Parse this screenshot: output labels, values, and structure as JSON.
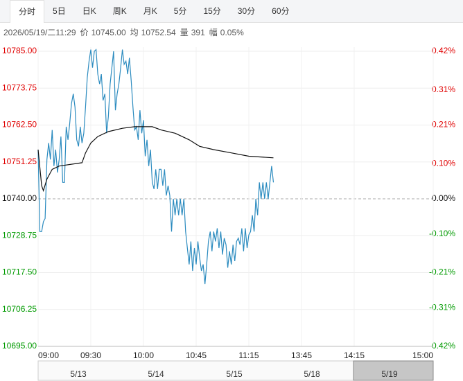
{
  "tabs": [
    "分时",
    "5日",
    "日K",
    "周K",
    "月K",
    "5分",
    "15分",
    "30分",
    "60分"
  ],
  "active_tab": 0,
  "info": {
    "time": "2026/05/19/二11:29",
    "items": [
      {
        "label": "价",
        "value": "10745.00"
      },
      {
        "label": "均",
        "value": "10752.54"
      },
      {
        "label": "量",
        "value": "391"
      },
      {
        "label": "幅",
        "value": "0.05%"
      }
    ]
  },
  "chart_data": {
    "type": "line",
    "xlim": [
      0,
      225
    ],
    "xticks": [
      {
        "value": 0,
        "label": "09:00"
      },
      {
        "value": 30,
        "label": "09:30"
      },
      {
        "value": 60,
        "label": "10:00"
      },
      {
        "value": 90,
        "label": "10:45"
      },
      {
        "value": 120,
        "label": "11:15"
      },
      {
        "value": 150,
        "label": "13:45"
      },
      {
        "value": 180,
        "label": "14:15"
      },
      {
        "value": 225,
        "label": "15:00"
      }
    ],
    "ylim": [
      10695,
      10785
    ],
    "yticks": [
      {
        "value": 10785,
        "label": "10785.00"
      },
      {
        "value": 10773.75,
        "label": "10773.75"
      },
      {
        "value": 10762.5,
        "label": "10762.50"
      },
      {
        "value": 10751.25,
        "label": "10751.25"
      },
      {
        "value": 10740,
        "label": "10740.00"
      },
      {
        "value": 10728.75,
        "label": "10728.75"
      },
      {
        "value": 10717.5,
        "label": "10717.50"
      },
      {
        "value": 10706.25,
        "label": "10706.25"
      },
      {
        "value": 10695,
        "label": "10695.00"
      }
    ],
    "y2lim": [
      -0.42,
      0.42
    ],
    "y2ticks": [
      {
        "value": 0.42,
        "label": "0.42%"
      },
      {
        "value": 0.31,
        "label": "0.31%"
      },
      {
        "value": 0.21,
        "label": "0.21%"
      },
      {
        "value": 0.1,
        "label": "0.10%"
      },
      {
        "value": 0,
        "label": "0.00%"
      },
      {
        "value": -0.1,
        "label": "-0.10%"
      },
      {
        "value": -0.21,
        "label": "-0.21%"
      },
      {
        "value": -0.31,
        "label": "-0.31%"
      },
      {
        "value": -0.42,
        "label": "-0.42%"
      }
    ],
    "reference_line": 10740,
    "up_color": "#e00000",
    "down_color": "#009a00",
    "series": [
      {
        "color": "#2b8bbf",
        "values": [
          10755,
          10730,
          10730,
          10733,
          10734,
          10752,
          10757,
          10752,
          10761,
          10750,
          10755,
          10748,
          10752,
          10759,
          10745,
          10745,
          10762,
          10758,
          10763,
          10769,
          10772,
          10768,
          10758,
          10756,
          10762,
          10757,
          10760,
          10768,
          10777,
          10782,
          10785.5,
          10780,
          10785,
          10785.5,
          10778,
          10775,
          10778,
          10770,
          10772,
          10760,
          10765,
          10775,
          10780,
          10785,
          10767,
          10772,
          10775,
          10780,
          10785.5,
          10781,
          10782,
          10778,
          10783,
          10776,
          10768,
          10761,
          10762,
          10758,
          10767,
          10760,
          10764,
          10753,
          10758,
          10750,
          10755,
          10745,
          10743,
          10749,
          10743,
          10749,
          10749,
          10744,
          10749,
          10741,
          10744,
          10741,
          10730,
          10740,
          10735,
          10740,
          10735,
          10740,
          10735,
          10740,
          10730,
          10725,
          10720,
          10727,
          10718,
          10725,
          10720,
          10727,
          10722,
          10718,
          10720,
          10714,
          10720,
          10727,
          10730,
          10724,
          10730,
          10727,
          10731,
          10725,
          10730,
          10723,
          10728,
          10726,
          10719,
          10724,
          10720,
          10726,
          10721,
          10727,
          10728,
          10726,
          10731,
          10724,
          10731,
          10725,
          10729,
          10730,
          10735,
          10730,
          10740,
          10735,
          10745,
          10740,
          10745,
          10740,
          10745,
          10740,
          10745,
          10750,
          10745
        ]
      },
      {
        "color": "#111111",
        "x": [
          0,
          2,
          3,
          5,
          8,
          12,
          25,
          27,
          30,
          34,
          40,
          48,
          55,
          65,
          70,
          78,
          86,
          92,
          100,
          110,
          120,
          134
        ],
        "values": [
          10755,
          10744,
          10742.5,
          10746,
          10749,
          10750,
          10751,
          10754,
          10757,
          10759,
          10760.5,
          10761.5,
          10762,
          10762,
          10761,
          10760,
          10758,
          10756,
          10755,
          10754,
          10753,
          10752.5
        ]
      }
    ]
  },
  "navigator": {
    "dates": [
      "5/13",
      "5/14",
      "5/15",
      "5/18",
      "5/19"
    ]
  }
}
